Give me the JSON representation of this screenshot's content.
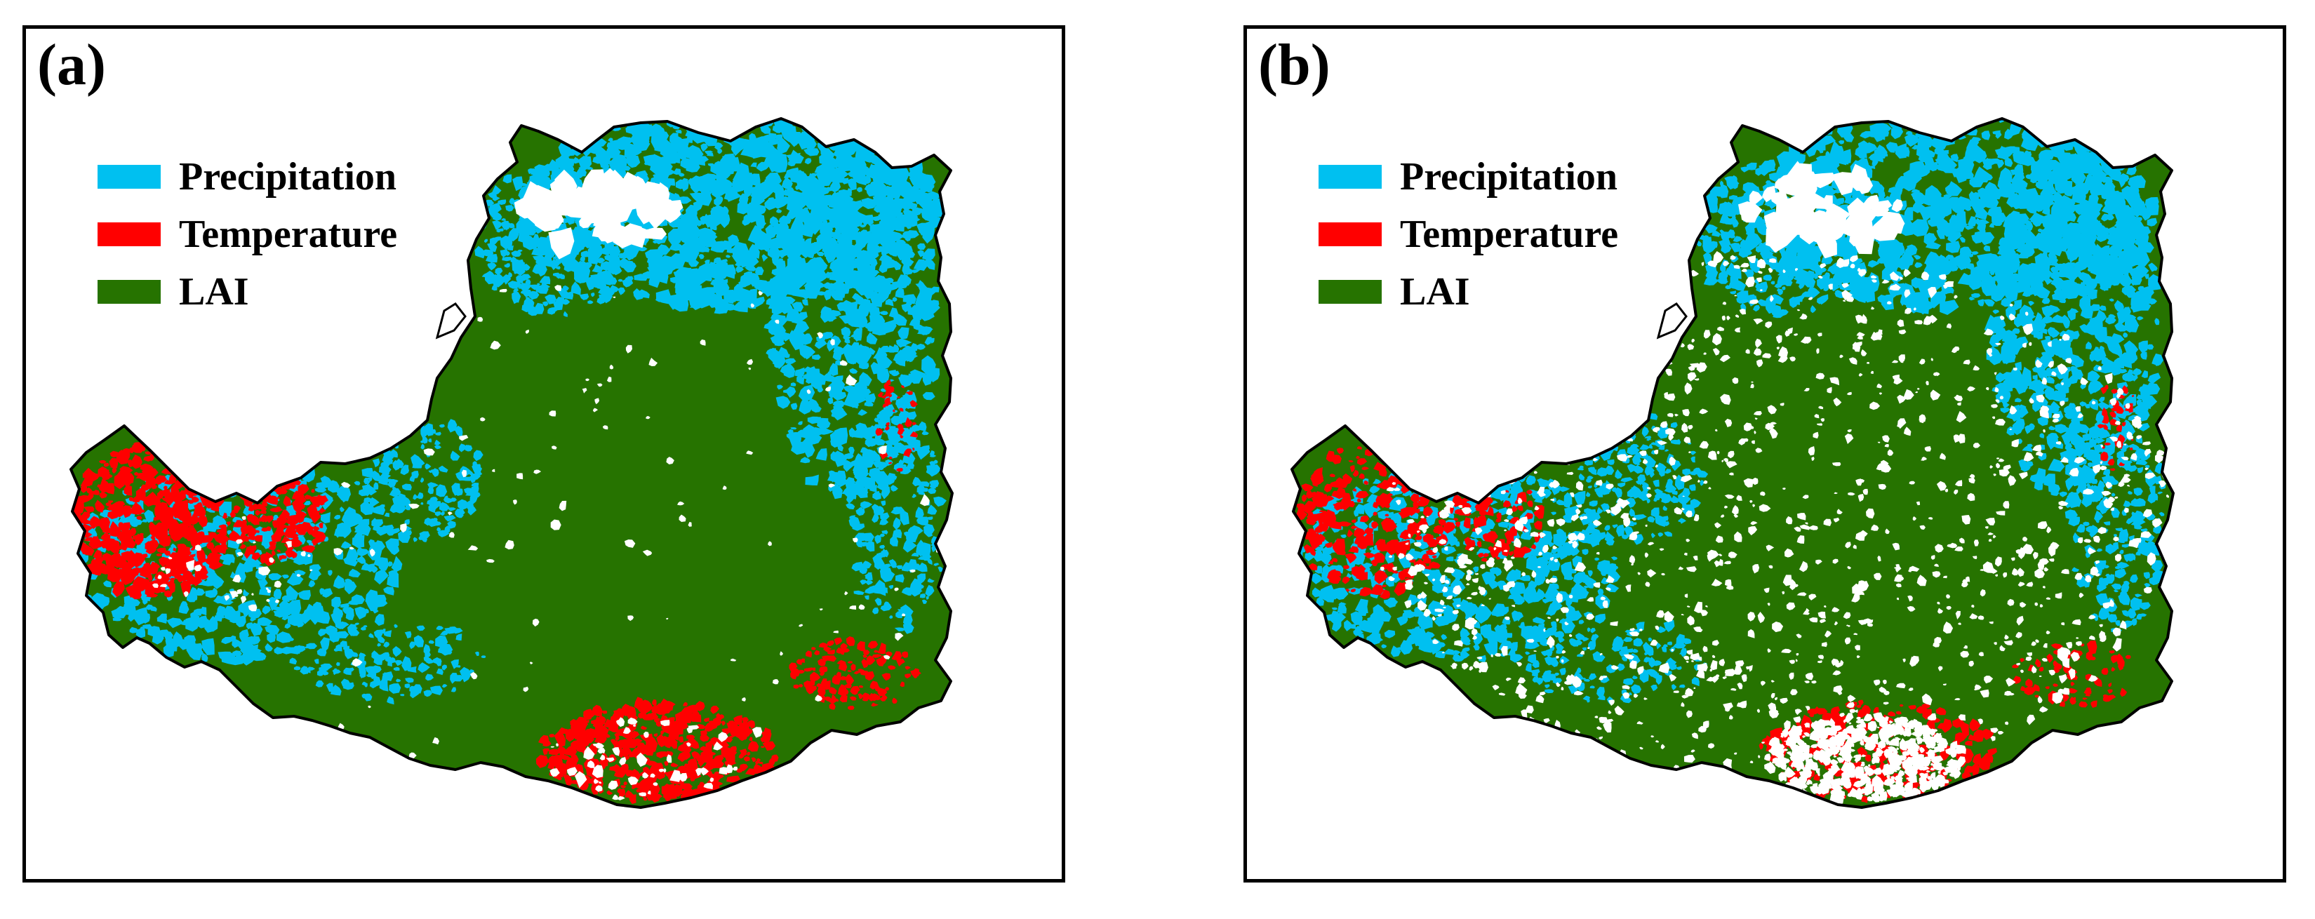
{
  "legend": [
    {
      "label": "Precipitation",
      "color": "#00c0f0"
    },
    {
      "label": "Temperature",
      "color": "#ff0000"
    },
    {
      "label": "LAI",
      "color": "#267300"
    }
  ],
  "panels": [
    {
      "id": "a",
      "label": "(a)",
      "nodata_share": 0.02
    },
    {
      "id": "b",
      "label": "(b)",
      "nodata_share": 0.2
    }
  ],
  "colors": {
    "nodata": "#ffffff",
    "border": "#000000"
  }
}
